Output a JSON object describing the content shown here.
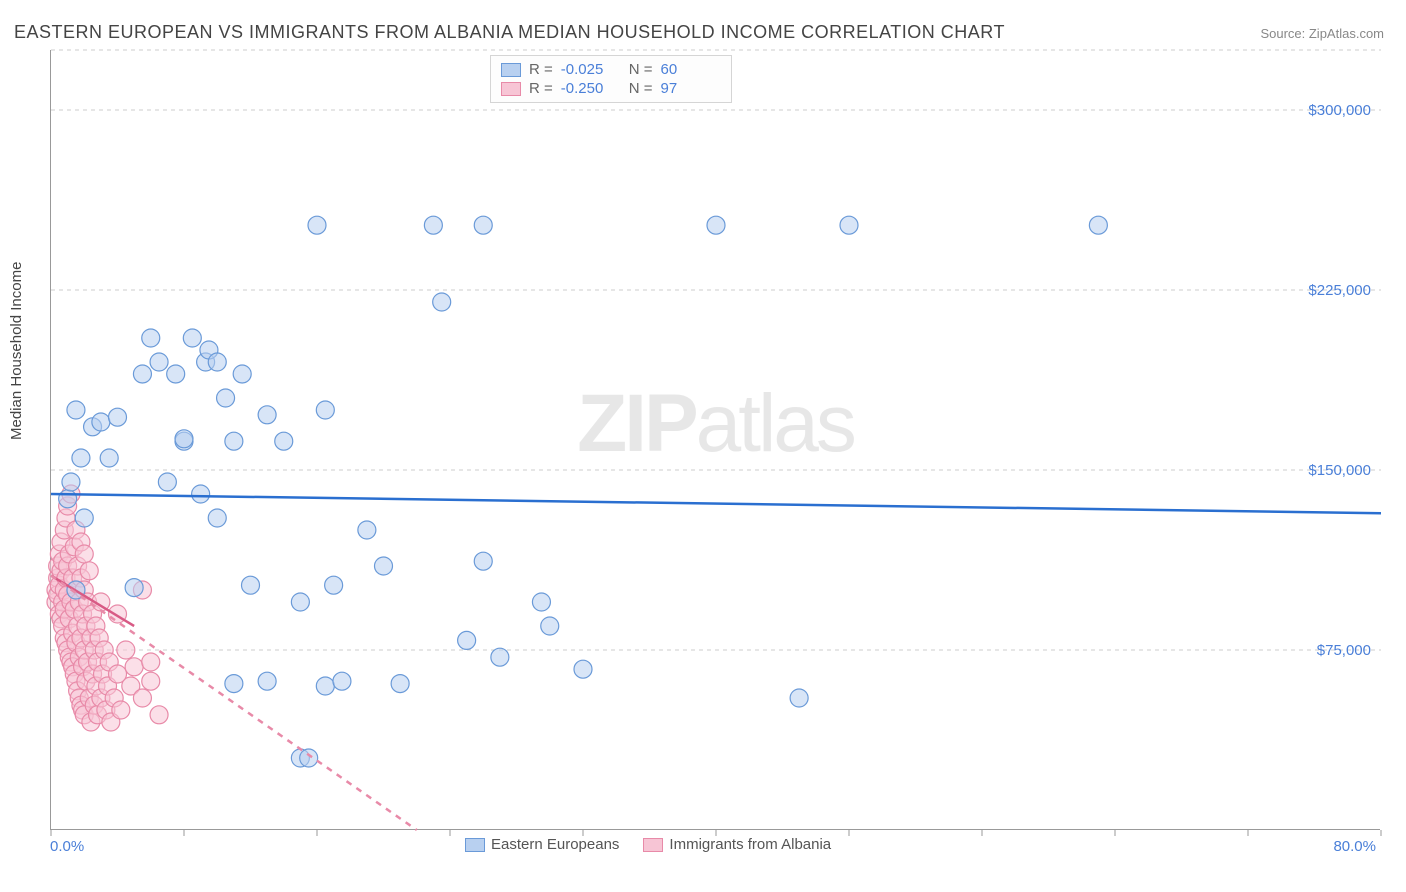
{
  "title": "EASTERN EUROPEAN VS IMMIGRANTS FROM ALBANIA MEDIAN HOUSEHOLD INCOME CORRELATION CHART",
  "source": "Source: ZipAtlas.com",
  "watermark_zip": "ZIP",
  "watermark_atlas": "atlas",
  "y_axis_label": "Median Household Income",
  "chart": {
    "type": "scatter",
    "x_min": 0.0,
    "x_max": 80.0,
    "x_min_label": "0.0%",
    "x_max_label": "80.0%",
    "x_ticks": [
      0,
      8,
      16,
      24,
      32,
      40,
      48,
      56,
      64,
      72,
      80
    ],
    "y_min": 0,
    "y_max": 325000,
    "y_gridlines": [
      {
        "value": 75000,
        "label": "$75,000"
      },
      {
        "value": 150000,
        "label": "$150,000"
      },
      {
        "value": 225000,
        "label": "$225,000"
      },
      {
        "value": 300000,
        "label": "$300,000"
      },
      {
        "value": 325000,
        "label": ""
      }
    ],
    "background_color": "#ffffff",
    "grid_color": "#cccccc",
    "axis_color": "#999999",
    "tick_label_color": "#4a7fd8",
    "marker_radius": 9,
    "marker_stroke_width": 1.2,
    "trend_line_width": 2.5,
    "series": [
      {
        "name": "Eastern Europeans",
        "fill_color": "#b8d0f0",
        "stroke_color": "#6a9ad8",
        "fill_opacity": 0.55,
        "R": "-0.025",
        "N": "60",
        "trend": {
          "x1": 0.0,
          "y1": 140000,
          "x2": 80.0,
          "y2": 132000,
          "color": "#2a6fd0",
          "dash": "none"
        },
        "points": [
          [
            1.0,
            138000
          ],
          [
            1.2,
            145000
          ],
          [
            1.5,
            100000
          ],
          [
            1.5,
            175000
          ],
          [
            1.8,
            155000
          ],
          [
            2.0,
            130000
          ],
          [
            2.5,
            168000
          ],
          [
            3.0,
            170000
          ],
          [
            3.5,
            155000
          ],
          [
            4.0,
            172000
          ],
          [
            5.0,
            101000
          ],
          [
            5.5,
            190000
          ],
          [
            6.0,
            205000
          ],
          [
            6.5,
            195000
          ],
          [
            7.0,
            145000
          ],
          [
            7.5,
            190000
          ],
          [
            8.0,
            162000
          ],
          [
            8.0,
            163000
          ],
          [
            8.5,
            205000
          ],
          [
            9.0,
            140000
          ],
          [
            9.3,
            195000
          ],
          [
            9.5,
            200000
          ],
          [
            10.0,
            130000
          ],
          [
            10.0,
            195000
          ],
          [
            10.5,
            180000
          ],
          [
            11.0,
            61000
          ],
          [
            11.0,
            162000
          ],
          [
            11.5,
            190000
          ],
          [
            12.0,
            102000
          ],
          [
            13.0,
            173000
          ],
          [
            13.0,
            62000
          ],
          [
            14.0,
            162000
          ],
          [
            15.0,
            95000
          ],
          [
            15.0,
            30000
          ],
          [
            15.5,
            30000
          ],
          [
            16.0,
            252000
          ],
          [
            16.5,
            60000
          ],
          [
            16.5,
            175000
          ],
          [
            17.0,
            102000
          ],
          [
            17.5,
            62000
          ],
          [
            19.0,
            125000
          ],
          [
            20.0,
            110000
          ],
          [
            21.0,
            61000
          ],
          [
            23.0,
            252000
          ],
          [
            23.5,
            220000
          ],
          [
            25.0,
            79000
          ],
          [
            26.0,
            252000
          ],
          [
            26.0,
            112000
          ],
          [
            27.0,
            72000
          ],
          [
            29.5,
            95000
          ],
          [
            30.0,
            85000
          ],
          [
            32.0,
            67000
          ],
          [
            40.0,
            252000
          ],
          [
            45.0,
            55000
          ],
          [
            48.0,
            252000
          ],
          [
            63.0,
            252000
          ]
        ]
      },
      {
        "name": "Immigrants from Albania",
        "fill_color": "#f7c5d5",
        "stroke_color": "#e88aa8",
        "fill_opacity": 0.55,
        "R": "-0.250",
        "N": "97",
        "trend": {
          "x1": 0.0,
          "y1": 106000,
          "x2": 22.0,
          "y2": 0,
          "color": "#e88aa8",
          "dash": "6,6"
        },
        "trend_solid": {
          "x1": 0.0,
          "y1": 106000,
          "x2": 5.0,
          "y2": 85000,
          "color": "#d85a85"
        },
        "points": [
          [
            0.3,
            95000
          ],
          [
            0.3,
            100000
          ],
          [
            0.4,
            105000
          ],
          [
            0.4,
            110000
          ],
          [
            0.4,
            98000
          ],
          [
            0.5,
            90000
          ],
          [
            0.5,
            115000
          ],
          [
            0.5,
            102000
          ],
          [
            0.6,
            88000
          ],
          [
            0.6,
            108000
          ],
          [
            0.6,
            120000
          ],
          [
            0.7,
            85000
          ],
          [
            0.7,
            112000
          ],
          [
            0.7,
            95000
          ],
          [
            0.8,
            80000
          ],
          [
            0.8,
            125000
          ],
          [
            0.8,
            100000
          ],
          [
            0.8,
            92000
          ],
          [
            0.9,
            78000
          ],
          [
            0.9,
            130000
          ],
          [
            0.9,
            105000
          ],
          [
            1.0,
            75000
          ],
          [
            1.0,
            135000
          ],
          [
            1.0,
            98000
          ],
          [
            1.0,
            110000
          ],
          [
            1.1,
            72000
          ],
          [
            1.1,
            115000
          ],
          [
            1.1,
            88000
          ],
          [
            1.2,
            70000
          ],
          [
            1.2,
            140000
          ],
          [
            1.2,
            95000
          ],
          [
            1.3,
            68000
          ],
          [
            1.3,
            105000
          ],
          [
            1.3,
            82000
          ],
          [
            1.4,
            65000
          ],
          [
            1.4,
            118000
          ],
          [
            1.4,
            92000
          ],
          [
            1.5,
            62000
          ],
          [
            1.5,
            100000
          ],
          [
            1.5,
            78000
          ],
          [
            1.5,
            125000
          ],
          [
            1.6,
            58000
          ],
          [
            1.6,
            110000
          ],
          [
            1.6,
            85000
          ],
          [
            1.7,
            55000
          ],
          [
            1.7,
            95000
          ],
          [
            1.7,
            72000
          ],
          [
            1.8,
            52000
          ],
          [
            1.8,
            105000
          ],
          [
            1.8,
            80000
          ],
          [
            1.8,
            120000
          ],
          [
            1.9,
            50000
          ],
          [
            1.9,
            90000
          ],
          [
            1.9,
            68000
          ],
          [
            2.0,
            48000
          ],
          [
            2.0,
            100000
          ],
          [
            2.0,
            75000
          ],
          [
            2.0,
            115000
          ],
          [
            2.1,
            85000
          ],
          [
            2.1,
            62000
          ],
          [
            2.2,
            95000
          ],
          [
            2.2,
            70000
          ],
          [
            2.3,
            55000
          ],
          [
            2.3,
            108000
          ],
          [
            2.4,
            80000
          ],
          [
            2.4,
            45000
          ],
          [
            2.5,
            90000
          ],
          [
            2.5,
            65000
          ],
          [
            2.6,
            75000
          ],
          [
            2.6,
            52000
          ],
          [
            2.7,
            85000
          ],
          [
            2.7,
            60000
          ],
          [
            2.8,
            70000
          ],
          [
            2.8,
            48000
          ],
          [
            2.9,
            80000
          ],
          [
            3.0,
            55000
          ],
          [
            3.0,
            95000
          ],
          [
            3.1,
            65000
          ],
          [
            3.2,
            75000
          ],
          [
            3.3,
            50000
          ],
          [
            3.4,
            60000
          ],
          [
            3.5,
            70000
          ],
          [
            3.6,
            45000
          ],
          [
            3.8,
            55000
          ],
          [
            4.0,
            65000
          ],
          [
            4.0,
            90000
          ],
          [
            4.2,
            50000
          ],
          [
            4.5,
            75000
          ],
          [
            4.8,
            60000
          ],
          [
            5.0,
            68000
          ],
          [
            5.5,
            55000
          ],
          [
            5.5,
            100000
          ],
          [
            6.0,
            62000
          ],
          [
            6.0,
            70000
          ],
          [
            6.5,
            48000
          ]
        ]
      }
    ]
  },
  "legend_labels": {
    "r_prefix": "R =",
    "n_prefix": "N ="
  }
}
